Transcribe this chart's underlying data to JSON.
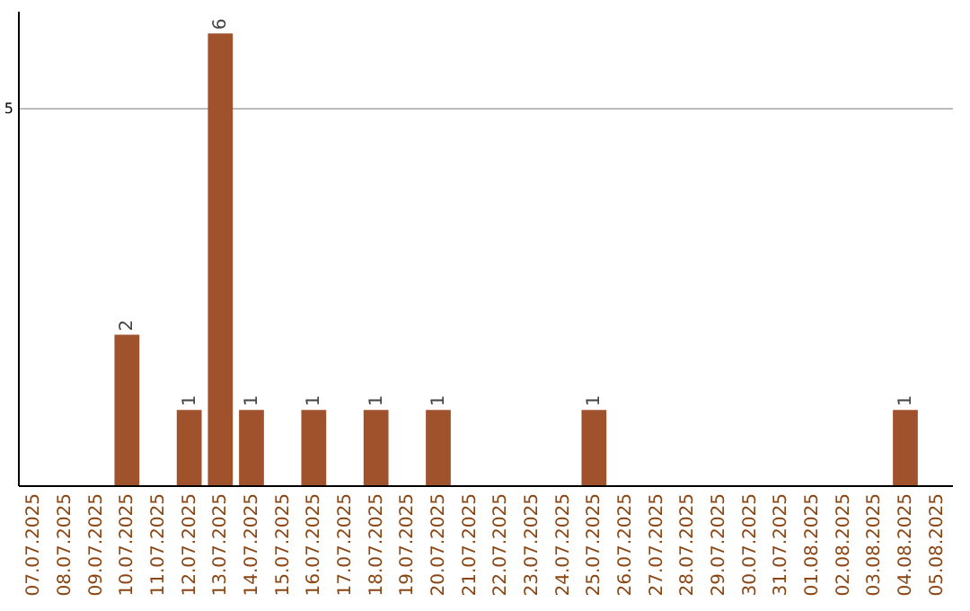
{
  "chart_data": {
    "type": "bar",
    "categories": [
      "07.07.2025",
      "08.07.2025",
      "09.07.2025",
      "10.07.2025",
      "11.07.2025",
      "12.07.2025",
      "13.07.2025",
      "14.07.2025",
      "15.07.2025",
      "16.07.2025",
      "17.07.2025",
      "18.07.2025",
      "19.07.2025",
      "20.07.2025",
      "21.07.2025",
      "22.07.2025",
      "23.07.2025",
      "24.07.2025",
      "25.07.2025",
      "26.07.2025",
      "27.07.2025",
      "28.07.2025",
      "29.07.2025",
      "30.07.2025",
      "31.07.2025",
      "01.08.2025",
      "02.08.2025",
      "03.08.2025",
      "04.08.2025",
      "05.08.2025"
    ],
    "values": [
      null,
      null,
      null,
      2,
      null,
      1,
      6,
      1,
      null,
      1,
      null,
      1,
      null,
      1,
      null,
      null,
      null,
      null,
      1,
      null,
      null,
      null,
      null,
      null,
      null,
      null,
      null,
      null,
      1,
      null
    ],
    "color": "#a0522d",
    "ylim": [
      0,
      6.3
    ],
    "yticks": [
      5
    ],
    "grid": "y",
    "data_labels": true
  }
}
